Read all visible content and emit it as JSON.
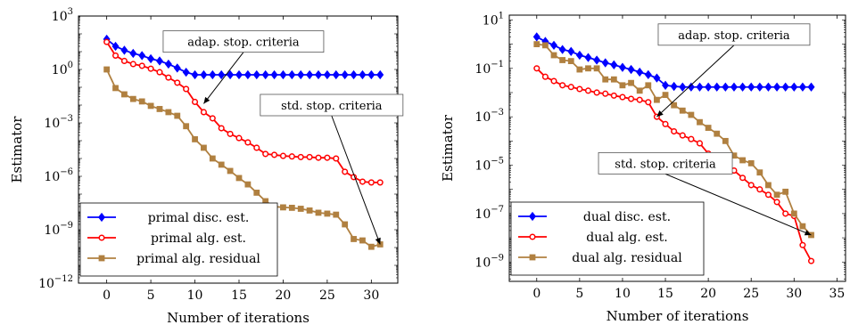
{
  "chart_data": [
    {
      "type": "line",
      "yscale": "log",
      "xlabel": "Number of iterations",
      "ylabel": "Estimator",
      "xlim": [
        -3.2,
        33
      ],
      "ylim_exponent": [
        -12,
        3
      ],
      "xticks": [
        0,
        5,
        10,
        15,
        20,
        25,
        30
      ],
      "yticks": [
        {
          "exp": 3,
          "label": "10",
          "sup": "3"
        },
        {
          "exp": 0,
          "label": "10",
          "sup": "0"
        },
        {
          "exp": -3,
          "label": "10",
          "sup": "−3"
        },
        {
          "exp": -6,
          "label": "10",
          "sup": "−6"
        },
        {
          "exp": -9,
          "label": "10",
          "sup": "−9"
        },
        {
          "exp": -12,
          "label": "10",
          "sup": "−12"
        }
      ],
      "legend_position": "bottom-left",
      "series": [
        {
          "name": "primal disc. est.",
          "color": "#0000ff",
          "marker": "diamond",
          "x": [
            0,
            1,
            2,
            3,
            4,
            5,
            6,
            7,
            8,
            9,
            10,
            11,
            12,
            13,
            14,
            15,
            16,
            17,
            18,
            19,
            20,
            21,
            22,
            23,
            24,
            25,
            26,
            27,
            28,
            29,
            30,
            31
          ],
          "y": [
            50,
            20,
            12,
            8,
            6,
            4,
            3,
            2,
            1.2,
            0.7,
            0.5,
            0.5,
            0.5,
            0.5,
            0.5,
            0.5,
            0.5,
            0.5,
            0.5,
            0.5,
            0.5,
            0.5,
            0.5,
            0.5,
            0.5,
            0.5,
            0.5,
            0.5,
            0.5,
            0.5,
            0.5,
            0.5
          ]
        },
        {
          "name": "primal alg. est.",
          "color": "#ff0000",
          "marker": "circle",
          "x": [
            0,
            1,
            2,
            3,
            4,
            5,
            6,
            7,
            8,
            9,
            10,
            11,
            12,
            13,
            14,
            15,
            16,
            17,
            18,
            19,
            20,
            21,
            22,
            23,
            24,
            25,
            26,
            27,
            28,
            29,
            30,
            31
          ],
          "y": [
            35,
            6,
            3,
            2,
            1.6,
            1.1,
            0.7,
            0.35,
            0.18,
            0.08,
            0.015,
            0.004,
            0.0018,
            0.0005,
            0.00024,
            0.00014,
            8e-05,
            4e-05,
            1.8e-05,
            1.6e-05,
            1.4e-05,
            1.3e-05,
            1.2e-05,
            1.2e-05,
            1.1e-05,
            1.1e-05,
            1e-05,
            1.8e-06,
            9e-07,
            5e-07,
            4.5e-07,
            4.5e-07
          ]
        },
        {
          "name": "primal alg. residual",
          "color": "#b08040",
          "marker": "square",
          "x": [
            0,
            1,
            2,
            3,
            4,
            5,
            6,
            7,
            8,
            9,
            10,
            11,
            12,
            13,
            14,
            15,
            16,
            17,
            18,
            19,
            20,
            21,
            22,
            23,
            24,
            25,
            26,
            27,
            28,
            29,
            30,
            31
          ],
          "y": [
            1,
            0.09,
            0.04,
            0.022,
            0.016,
            0.009,
            0.006,
            0.004,
            0.0025,
            0.00065,
            0.00012,
            4e-05,
            1e-05,
            4.5e-06,
            2e-06,
            8e-07,
            3.5e-07,
            1.2e-07,
            4e-08,
            2e-08,
            1.8e-08,
            1.7e-08,
            1.5e-08,
            1.2e-08,
            9e-09,
            8e-09,
            7e-09,
            2e-09,
            3e-10,
            2.5e-10,
            1.1e-10,
            1.5e-10
          ]
        }
      ],
      "annotations": [
        {
          "text": "adap. stop. criteria",
          "box": [
            15.5,
            37
          ],
          "target": [
            11,
            0.012
          ]
        },
        {
          "text": "std. stop. criteria",
          "box": [
            25.5,
            0.01
          ],
          "target": [
            31,
            1.5e-10
          ]
        }
      ]
    },
    {
      "type": "line",
      "yscale": "log",
      "xlabel": "Number of iterations",
      "ylabel": "Estimator",
      "xlim": [
        -3.2,
        36
      ],
      "ylim_exponent": [
        -9.8,
        1.2
      ],
      "xticks": [
        0,
        5,
        10,
        15,
        20,
        25,
        30,
        35
      ],
      "yticks": [
        {
          "exp": 1,
          "label": "10",
          "sup": "1"
        },
        {
          "exp": -1,
          "label": "10",
          "sup": "−1"
        },
        {
          "exp": -3,
          "label": "10",
          "sup": "−3"
        },
        {
          "exp": -5,
          "label": "10",
          "sup": "−5"
        },
        {
          "exp": -7,
          "label": "10",
          "sup": "−7"
        },
        {
          "exp": -9,
          "label": "10",
          "sup": "−9"
        }
      ],
      "legend_position": "bottom-left",
      "series": [
        {
          "name": "dual disc. est.",
          "color": "#0000ff",
          "marker": "diamond",
          "x": [
            0,
            1,
            2,
            3,
            4,
            5,
            6,
            7,
            8,
            9,
            10,
            11,
            12,
            13,
            14,
            15,
            16,
            17,
            18,
            19,
            20,
            21,
            22,
            23,
            24,
            25,
            26,
            27,
            28,
            29,
            30,
            31,
            32
          ],
          "y": [
            2,
            1.3,
            0.9,
            0.6,
            0.5,
            0.35,
            0.28,
            0.22,
            0.17,
            0.14,
            0.11,
            0.09,
            0.07,
            0.055,
            0.04,
            0.02,
            0.018,
            0.017,
            0.017,
            0.017,
            0.017,
            0.017,
            0.017,
            0.017,
            0.017,
            0.017,
            0.017,
            0.017,
            0.017,
            0.017,
            0.017,
            0.017,
            0.017
          ]
        },
        {
          "name": "dual alg. est.",
          "color": "#ff0000",
          "marker": "circle",
          "x": [
            0,
            1,
            2,
            3,
            4,
            5,
            6,
            7,
            8,
            9,
            10,
            11,
            12,
            13,
            14,
            15,
            16,
            17,
            18,
            19,
            20,
            21,
            22,
            23,
            24,
            25,
            26,
            27,
            28,
            29,
            30,
            31,
            32
          ],
          "y": [
            0.1,
            0.045,
            0.03,
            0.02,
            0.017,
            0.014,
            0.012,
            0.01,
            0.009,
            0.0075,
            0.0065,
            0.0055,
            0.005,
            0.004,
            0.001,
            0.0005,
            0.00025,
            0.00017,
            0.00012,
            8e-05,
            3e-05,
            1e-05,
            8e-06,
            6e-06,
            3e-06,
            1.5e-06,
            1e-06,
            6e-07,
            3e-07,
            1e-07,
            8e-08,
            5e-09,
            1.1e-09
          ]
        },
        {
          "name": "dual alg. residual",
          "color": "#b08040",
          "marker": "square",
          "x": [
            0,
            1,
            2,
            3,
            4,
            5,
            6,
            7,
            8,
            9,
            10,
            11,
            12,
            13,
            14,
            15,
            16,
            17,
            18,
            19,
            20,
            21,
            22,
            23,
            24,
            25,
            26,
            27,
            28,
            29,
            30,
            31,
            32
          ],
          "y": [
            1,
            0.9,
            0.35,
            0.22,
            0.2,
            0.09,
            0.1,
            0.1,
            0.035,
            0.035,
            0.02,
            0.025,
            0.012,
            0.02,
            0.005,
            0.008,
            0.003,
            0.0018,
            0.0012,
            0.0006,
            0.00035,
            0.0002,
            0.0001,
            2.5e-05,
            1.6e-05,
            1.2e-05,
            5e-06,
            1.5e-06,
            6e-07,
            8e-07,
            1e-07,
            3e-08,
            1.3e-08
          ]
        }
      ],
      "annotations": [
        {
          "text": "adap. stop. criteria",
          "box": [
            23,
            2.5
          ],
          "target": [
            14,
            0.001
          ]
        },
        {
          "text": "std. stop. criteria",
          "box": [
            15,
            1.2e-05
          ],
          "target": [
            32,
            1.3e-08
          ]
        }
      ]
    }
  ]
}
